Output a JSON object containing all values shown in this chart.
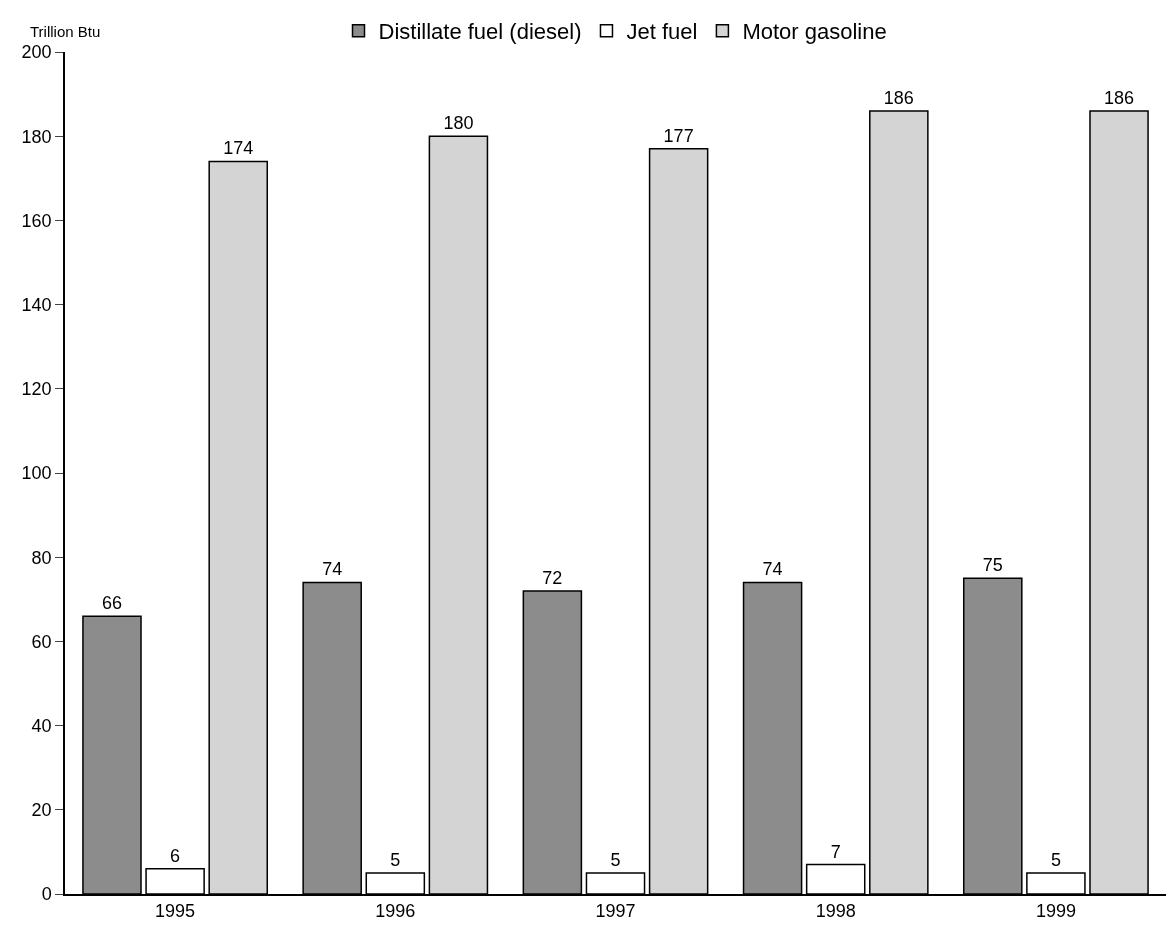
{
  "chart_data": {
    "type": "bar",
    "ylabel": "Trillion Btu",
    "categories": [
      "1995",
      "1996",
      "1997",
      "1998",
      "1999"
    ],
    "series": [
      {
        "name": "Distillate fuel (diesel)",
        "color": "#8c8c8c",
        "values": [
          66,
          74,
          72,
          74,
          75
        ]
      },
      {
        "name": "Jet fuel",
        "color": "#ffffff",
        "values": [
          6,
          5,
          5,
          7,
          5
        ]
      },
      {
        "name": "Motor gasoline",
        "color": "#d4d4d4",
        "values": [
          174,
          180,
          177,
          186,
          186
        ]
      }
    ],
    "ylim": [
      0,
      200
    ],
    "yticks": [
      0,
      20,
      40,
      60,
      80,
      100,
      120,
      140,
      160,
      180,
      200
    ],
    "data_labels": true,
    "grid": false,
    "legend": "top"
  }
}
